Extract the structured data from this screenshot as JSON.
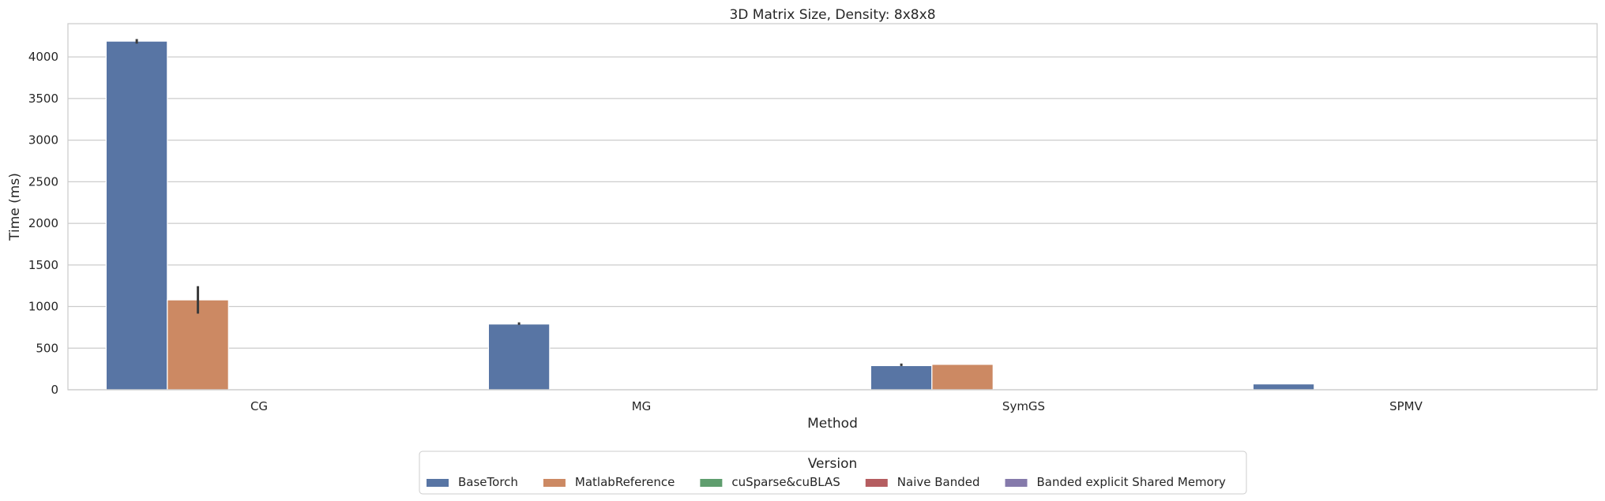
{
  "chart_data": {
    "type": "bar",
    "title": "3D Matrix Size, Density: 8x8x8",
    "xlabel": "Method",
    "ylabel": "Time (ms)",
    "categories": [
      "CG",
      "MG",
      "SymGS",
      "SPMV"
    ],
    "ylim": [
      0,
      4400
    ],
    "yticks": [
      0,
      500,
      1000,
      1500,
      2000,
      2500,
      3000,
      3500,
      4000
    ],
    "grid": true,
    "legend": {
      "title": "Version",
      "placement": "bottom-center"
    },
    "series": [
      {
        "name": "BaseTorch",
        "color": "#5875a4",
        "values": [
          4190,
          790,
          290,
          70
        ],
        "error_low": [
          4160,
          780,
          285,
          null
        ],
        "error_high": [
          4215,
          810,
          315,
          null
        ]
      },
      {
        "name": "MatlabReference",
        "color": "#cc8963",
        "values": [
          1080,
          null,
          305,
          null
        ],
        "error_low": [
          915,
          null,
          null,
          null
        ],
        "error_high": [
          1245,
          null,
          null,
          null
        ]
      },
      {
        "name": "cuSparse&cuBLAS",
        "color": "#5f9e6e",
        "values": [
          null,
          null,
          null,
          null
        ]
      },
      {
        "name": "Naive Banded",
        "color": "#b55d60",
        "values": [
          null,
          null,
          null,
          null
        ]
      },
      {
        "name": "Banded explicit Shared Memory",
        "color": "#857aab",
        "values": [
          null,
          null,
          null,
          null
        ]
      }
    ]
  }
}
